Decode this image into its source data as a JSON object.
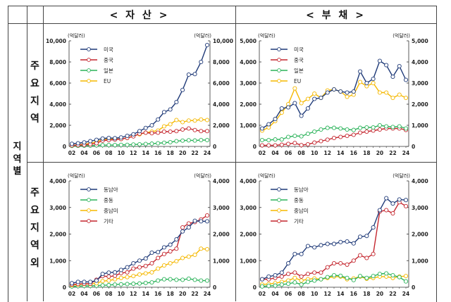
{
  "headers": {
    "assets": "< 자 산 >",
    "liabilities": "< 부 채 >"
  },
  "row_group_label": "지역별",
  "row_labels": {
    "major": "주요지역",
    "other": "주요지역외"
  },
  "unit": "(억달러)",
  "colors": {
    "미국": "#1f3a78",
    "중국": "#c4262e",
    "일본": "#2bb35a",
    "EU": "#f5b800",
    "동남아": "#1f3a78",
    "중동": "#2bb35a",
    "중남미": "#f5b800",
    "기타": "#c4262e"
  },
  "chart_data": [
    {
      "id": "assets-major",
      "type": "line",
      "title": "자산 - 주요지역",
      "x": [
        "02",
        "03",
        "04",
        "05",
        "06",
        "07",
        "08",
        "09",
        "10",
        "11",
        "12",
        "13",
        "14",
        "15",
        "16",
        "17",
        "18",
        "19",
        "20",
        "21",
        "22",
        "23",
        "24"
      ],
      "xticks": [
        "02",
        "04",
        "06",
        "08",
        "10",
        "12",
        "14",
        "16",
        "18",
        "20",
        "22",
        "24"
      ],
      "ylim": [
        0,
        10000
      ],
      "yticks": [
        "0",
        "2,000",
        "4,000",
        "6,000",
        "8,000",
        "10,000"
      ],
      "ylabel": "(억달러)",
      "series": [
        {
          "name": "미국",
          "values": [
            250,
            300,
            380,
            500,
            620,
            750,
            800,
            780,
            850,
            1000,
            1150,
            1450,
            1750,
            2000,
            2550,
            3250,
            3500,
            4200,
            5350,
            6800,
            6850,
            8000,
            9600
          ]
        },
        {
          "name": "중국",
          "values": [
            100,
            120,
            150,
            200,
            300,
            550,
            600,
            650,
            700,
            800,
            950,
            1200,
            1300,
            1250,
            1300,
            1400,
            1400,
            1450,
            1600,
            1700,
            1550,
            1450,
            1450
          ]
        },
        {
          "name": "일본",
          "values": [
            50,
            60,
            70,
            80,
            100,
            120,
            130,
            130,
            150,
            150,
            180,
            200,
            230,
            260,
            300,
            350,
            400,
            500,
            550,
            580,
            560,
            600,
            600
          ]
        },
        {
          "name": "EU",
          "values": [
            100,
            150,
            200,
            300,
            450,
            650,
            700,
            700,
            700,
            800,
            1000,
            1150,
            1300,
            1400,
            1500,
            1900,
            2100,
            2500,
            2300,
            2450,
            2450,
            2550,
            2500
          ]
        }
      ]
    },
    {
      "id": "liabilities-major",
      "type": "line",
      "title": "부채 - 주요지역",
      "x": [
        "02",
        "03",
        "04",
        "05",
        "06",
        "07",
        "08",
        "09",
        "10",
        "11",
        "12",
        "13",
        "14",
        "15",
        "16",
        "17",
        "18",
        "19",
        "20",
        "21",
        "22",
        "23",
        "24"
      ],
      "xticks": [
        "02",
        "04",
        "06",
        "08",
        "10",
        "12",
        "14",
        "16",
        "18",
        "20",
        "22",
        "24"
      ],
      "ylim": [
        0,
        5000
      ],
      "yticks": [
        "0",
        "1,000",
        "2,000",
        "3,000",
        "4,000",
        "5,000"
      ],
      "ylabel": "(억달러)",
      "series": [
        {
          "name": "미국",
          "values": [
            850,
            1050,
            1300,
            1800,
            1850,
            2050,
            1450,
            1800,
            2250,
            2300,
            2550,
            2700,
            2600,
            2550,
            2600,
            3550,
            3000,
            3200,
            4050,
            3850,
            3300,
            3800,
            3150
          ]
        },
        {
          "name": "중국",
          "values": [
            50,
            50,
            50,
            80,
            120,
            160,
            60,
            100,
            180,
            250,
            320,
            400,
            450,
            500,
            550,
            650,
            700,
            750,
            800,
            850,
            850,
            850,
            780
          ]
        },
        {
          "name": "일본",
          "values": [
            300,
            300,
            330,
            330,
            450,
            500,
            480,
            600,
            700,
            800,
            880,
            880,
            850,
            800,
            780,
            880,
            900,
            900,
            1000,
            950,
            920,
            950,
            850
          ]
        },
        {
          "name": "EU",
          "values": [
            750,
            900,
            1200,
            1600,
            2000,
            2750,
            2050,
            2250,
            2500,
            2300,
            2650,
            2700,
            2600,
            2350,
            2450,
            3050,
            2850,
            3000,
            2550,
            2550,
            2300,
            2450,
            2300
          ]
        }
      ]
    },
    {
      "id": "assets-other",
      "type": "line",
      "title": "자산 - 주요지역외",
      "x": [
        "02",
        "03",
        "04",
        "05",
        "06",
        "07",
        "08",
        "09",
        "10",
        "11",
        "12",
        "13",
        "14",
        "15",
        "16",
        "17",
        "18",
        "19",
        "20",
        "21",
        "22",
        "23",
        "24"
      ],
      "xticks": [
        "02",
        "04",
        "06",
        "08",
        "10",
        "12",
        "14",
        "16",
        "18",
        "20",
        "22",
        "24"
      ],
      "ylim": [
        0,
        4000
      ],
      "yticks": [
        "0",
        "1,000",
        "2,000",
        "3,000",
        "4,000"
      ],
      "ylabel": "(억달러)",
      "series": [
        {
          "name": "동남아",
          "values": [
            150,
            200,
            200,
            200,
            250,
            500,
            550,
            560,
            650,
            750,
            900,
            1000,
            1080,
            1300,
            1320,
            1500,
            1600,
            1800,
            2100,
            2250,
            2500,
            2480,
            2480
          ]
        },
        {
          "name": "중동",
          "values": [
            30,
            40,
            50,
            50,
            60,
            70,
            80,
            100,
            110,
            120,
            130,
            140,
            160,
            180,
            250,
            300,
            300,
            280,
            280,
            320,
            280,
            250,
            250
          ]
        },
        {
          "name": "중남미",
          "values": [
            80,
            100,
            120,
            120,
            150,
            230,
            250,
            300,
            350,
            380,
            420,
            480,
            520,
            560,
            700,
            820,
            900,
            980,
            1100,
            1150,
            1220,
            1450,
            1430
          ]
        },
        {
          "name": "기타",
          "values": [
            100,
            120,
            130,
            130,
            280,
            420,
            400,
            430,
            530,
            560,
            700,
            750,
            800,
            900,
            1100,
            1250,
            1350,
            1450,
            2250,
            2400,
            2450,
            2550,
            2700
          ]
        }
      ]
    },
    {
      "id": "liabilities-other",
      "type": "line",
      "title": "부채 - 주요지역외",
      "x": [
        "02",
        "03",
        "04",
        "05",
        "06",
        "07",
        "08",
        "09",
        "10",
        "11",
        "12",
        "13",
        "14",
        "15",
        "16",
        "17",
        "18",
        "19",
        "20",
        "21",
        "22",
        "23",
        "24"
      ],
      "xticks": [
        "02",
        "04",
        "06",
        "08",
        "10",
        "12",
        "14",
        "16",
        "18",
        "20",
        "22",
        "24"
      ],
      "ylim": [
        0,
        4000
      ],
      "yticks": [
        "0",
        "1,000",
        "2,000",
        "3,000",
        "4,000"
      ],
      "ylabel": "(억달러)",
      "series": [
        {
          "name": "동남아",
          "values": [
            300,
            400,
            450,
            550,
            900,
            1250,
            1250,
            1550,
            1500,
            1580,
            1630,
            1630,
            1700,
            1720,
            1650,
            1900,
            1930,
            2250,
            2900,
            3350,
            3150,
            3300,
            3280
          ]
        },
        {
          "name": "중동",
          "values": [
            30,
            50,
            60,
            100,
            130,
            180,
            100,
            200,
            250,
            300,
            380,
            450,
            430,
            350,
            270,
            420,
            350,
            420,
            500,
            520,
            450,
            380,
            220
          ]
        },
        {
          "name": "중남미",
          "values": [
            100,
            120,
            150,
            200,
            250,
            350,
            250,
            300,
            330,
            300,
            350,
            400,
            400,
            300,
            330,
            400,
            320,
            350,
            400,
            400,
            350,
            400,
            420
          ]
        },
        {
          "name": "기타",
          "values": [
            300,
            300,
            350,
            400,
            500,
            550,
            400,
            500,
            550,
            550,
            750,
            900,
            900,
            850,
            1000,
            1200,
            1100,
            1250,
            2850,
            2900,
            2780,
            3200,
            3050
          ]
        }
      ]
    }
  ]
}
